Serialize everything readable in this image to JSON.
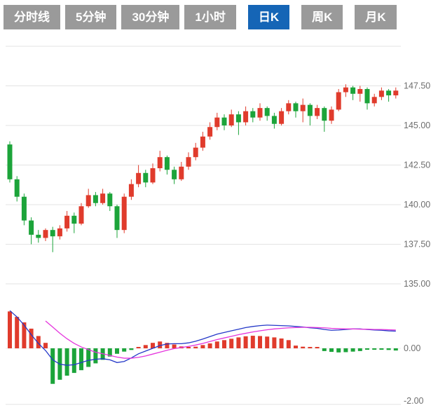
{
  "toolbar": {
    "tabs": [
      {
        "label": "分时线",
        "active": false
      },
      {
        "label": "5分钟",
        "active": false
      },
      {
        "label": "30分钟",
        "active": false
      },
      {
        "label": "1小时",
        "active": false
      },
      {
        "label": "日K",
        "active": true
      },
      {
        "label": "周K",
        "active": false
      },
      {
        "label": "月K",
        "active": false
      }
    ]
  },
  "colors": {
    "up": "#e03b2c",
    "down": "#1ca43a",
    "tab_inactive_bg": "#9a9a9a",
    "tab_active_bg": "#1565b6",
    "tab_text": "#ffffff",
    "grid": "#e3e3e3",
    "axis_text": "#6e6e6e",
    "dif_line": "#2438c8",
    "dea_line": "#e535dd"
  },
  "chart_data": {
    "type": "candlestick",
    "timeframe": "日K",
    "price_axis": {
      "ticks": [
        "147.50",
        "145.00",
        "142.50",
        "140.00",
        "137.50",
        "135.00"
      ],
      "max": 150.0,
      "step": 2.5
    },
    "candles": [
      [
        143.8,
        144.0,
        141.4,
        141.6
      ],
      [
        141.6,
        141.8,
        140.2,
        140.5
      ],
      [
        140.5,
        140.7,
        138.7,
        139.0
      ],
      [
        139.0,
        139.2,
        137.5,
        138.1
      ],
      [
        138.1,
        138.4,
        137.6,
        137.9
      ],
      [
        137.9,
        138.5,
        137.7,
        138.4
      ],
      [
        138.4,
        138.6,
        137.0,
        138.0
      ],
      [
        138.0,
        138.7,
        137.8,
        138.5
      ],
      [
        138.5,
        139.6,
        138.3,
        139.3
      ],
      [
        139.3,
        139.5,
        138.2,
        138.8
      ],
      [
        138.8,
        140.1,
        138.7,
        139.9
      ],
      [
        139.9,
        141.0,
        139.8,
        140.6
      ],
      [
        140.6,
        140.8,
        139.9,
        140.1
      ],
      [
        140.1,
        141.0,
        140.0,
        140.7
      ],
      [
        140.7,
        140.8,
        139.6,
        139.9
      ],
      [
        139.9,
        140.0,
        137.9,
        138.4
      ],
      [
        138.4,
        140.7,
        138.2,
        140.5
      ],
      [
        140.5,
        141.6,
        140.3,
        141.3
      ],
      [
        141.3,
        142.5,
        141.1,
        142.0
      ],
      [
        142.0,
        142.2,
        141.1,
        141.4
      ],
      [
        141.4,
        142.6,
        141.3,
        142.3
      ],
      [
        142.3,
        143.4,
        142.1,
        143.0
      ],
      [
        143.0,
        143.1,
        141.9,
        142.2
      ],
      [
        142.2,
        142.4,
        141.3,
        141.6
      ],
      [
        141.6,
        142.7,
        141.5,
        142.4
      ],
      [
        142.4,
        143.3,
        142.2,
        143.0
      ],
      [
        143.0,
        143.9,
        142.8,
        143.6
      ],
      [
        143.6,
        144.6,
        143.4,
        144.3
      ],
      [
        144.3,
        145.2,
        144.1,
        144.9
      ],
      [
        144.9,
        145.8,
        144.7,
        145.5
      ],
      [
        145.5,
        145.7,
        144.7,
        145.0
      ],
      [
        145.0,
        146.0,
        144.9,
        145.7
      ],
      [
        145.7,
        145.9,
        144.4,
        145.2
      ],
      [
        145.2,
        146.2,
        145.0,
        145.9
      ],
      [
        145.9,
        146.1,
        145.2,
        145.5
      ],
      [
        145.5,
        146.4,
        145.3,
        146.1
      ],
      [
        146.1,
        146.2,
        145.3,
        145.6
      ],
      [
        145.6,
        145.8,
        144.8,
        145.1
      ],
      [
        145.1,
        146.1,
        145.0,
        145.9
      ],
      [
        145.9,
        146.6,
        145.7,
        146.4
      ],
      [
        146.4,
        146.5,
        145.5,
        145.9
      ],
      [
        145.9,
        146.7,
        145.2,
        146.3
      ],
      [
        146.3,
        146.4,
        145.0,
        145.6
      ],
      [
        145.6,
        146.3,
        145.4,
        146.1
      ],
      [
        146.1,
        146.2,
        144.6,
        145.3
      ],
      [
        145.3,
        146.2,
        145.1,
        146.0
      ],
      [
        146.0,
        147.3,
        145.9,
        147.1
      ],
      [
        147.1,
        147.6,
        146.8,
        147.4
      ],
      [
        147.4,
        147.5,
        146.6,
        147.0
      ],
      [
        147.0,
        147.5,
        146.5,
        147.3
      ],
      [
        147.3,
        147.4,
        146.0,
        146.4
      ],
      [
        146.4,
        147.0,
        146.2,
        146.8
      ],
      [
        146.8,
        147.4,
        146.6,
        147.2
      ],
      [
        147.2,
        147.3,
        146.5,
        146.9
      ],
      [
        146.9,
        147.4,
        146.7,
        147.2
      ]
    ],
    "indicator": {
      "type": "MACD",
      "axis_ticks": [
        "0.00",
        "-2.00"
      ],
      "histogram": [
        1.35,
        1.15,
        0.95,
        0.72,
        0.45,
        0.2,
        -1.3,
        -1.15,
        -1.0,
        -0.9,
        -0.8,
        -0.68,
        -0.55,
        -0.42,
        -0.3,
        -0.2,
        -0.12,
        -0.06,
        0.05,
        0.12,
        0.2,
        0.25,
        0.2,
        0.14,
        0.07,
        0.03,
        0.06,
        0.12,
        0.18,
        0.25,
        0.3,
        0.35,
        0.4,
        0.44,
        0.46,
        0.45,
        0.43,
        0.4,
        0.36,
        0.3,
        0.1,
        0.06,
        0.05,
        0.04,
        -0.1,
        -0.13,
        -0.15,
        -0.14,
        -0.12,
        -0.1,
        -0.05,
        -0.03,
        -0.03,
        -0.06,
        -0.08
      ],
      "dif": [
        1.38,
        1.15,
        0.85,
        0.5,
        0.18,
        -0.08,
        -0.42,
        -0.58,
        -0.62,
        -0.6,
        -0.52,
        -0.44,
        -0.4,
        -0.38,
        -0.42,
        -0.52,
        -0.48,
        -0.35,
        -0.2,
        -0.1,
        0.0,
        0.1,
        0.16,
        0.17,
        0.17,
        0.2,
        0.26,
        0.34,
        0.43,
        0.52,
        0.58,
        0.64,
        0.7,
        0.76,
        0.8,
        0.83,
        0.85,
        0.84,
        0.83,
        0.82,
        0.8,
        0.78,
        0.75,
        0.73,
        0.69,
        0.66,
        0.67,
        0.69,
        0.71,
        0.71,
        0.69,
        0.67,
        0.66,
        0.64,
        0.63
      ],
      "dea": [
        null,
        null,
        null,
        null,
        null,
        1.0,
        0.78,
        0.55,
        0.35,
        0.18,
        0.05,
        -0.05,
        -0.14,
        -0.2,
        -0.26,
        -0.32,
        -0.36,
        -0.36,
        -0.33,
        -0.28,
        -0.21,
        -0.14,
        -0.07,
        -0.01,
        0.03,
        0.07,
        0.12,
        0.18,
        0.25,
        0.32,
        0.38,
        0.44,
        0.5,
        0.55,
        0.6,
        0.64,
        0.68,
        0.71,
        0.73,
        0.75,
        0.76,
        0.77,
        0.77,
        0.76,
        0.75,
        0.73,
        0.72,
        0.71,
        0.71,
        0.7,
        0.7,
        0.69,
        0.69,
        0.68,
        0.67
      ]
    }
  }
}
